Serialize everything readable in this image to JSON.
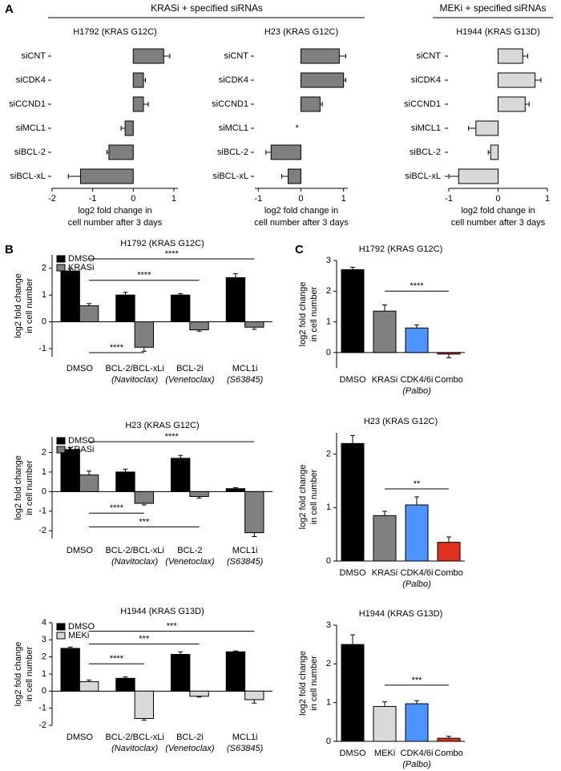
{
  "figure": {
    "panels": [
      "A",
      "B",
      "C"
    ],
    "groups": [
      "KRASi + specified siRNAs",
      "MEKi + specified siRNAs"
    ]
  },
  "chart_data": [
    {
      "type": "barh",
      "title": "H1792 (KRAS G12C)",
      "categories": [
        "siCNT",
        "siCDK4",
        "siCCND1",
        "siMCL1",
        "siBCL-2",
        "siBCL-xL"
      ],
      "values": [
        0.75,
        0.25,
        0.25,
        -0.2,
        -0.6,
        -1.3
      ],
      "errors": [
        0.15,
        0.05,
        0.12,
        0.1,
        0.05,
        0.3
      ],
      "color": "#7f7f7f",
      "xlim": [
        -2,
        1.1
      ],
      "xticks": [
        -2,
        -1,
        0,
        1
      ],
      "xlabel": [
        "log2 fold change in",
        "cell number after 3 days"
      ]
    },
    {
      "type": "barh",
      "title": "H23 (KRAS G12C)",
      "categories": [
        "siCNT",
        "siCDK4",
        "siCCND1",
        "siMCL1",
        "siBCL-2",
        "siBCL-xL"
      ],
      "values": [
        0.9,
        1.0,
        0.45,
        null,
        -0.7,
        -0.3
      ],
      "errors": [
        0.15,
        0.05,
        0.05,
        null,
        0.12,
        0.15
      ],
      "color": "#7f7f7f",
      "xlim": [
        -1.08,
        1.1
      ],
      "xticks": [
        -1,
        0,
        1
      ],
      "xlabel": [
        "log2 fold change in",
        "cell number after 3 days"
      ],
      "annotations": [
        "*"
      ]
    },
    {
      "type": "barh",
      "title": "H1944 (KRAS G13D)",
      "categories": [
        "siCNT",
        "siCDK4",
        "siCCND1",
        "siMCL1",
        "siBCL-2",
        "siBCL-xL"
      ],
      "values": [
        0.5,
        0.75,
        0.55,
        -0.45,
        -0.15,
        -0.8
      ],
      "errors": [
        0.1,
        0.12,
        0.08,
        0.15,
        0.05,
        0.2
      ],
      "color": "#d9d9d9",
      "xlim": [
        -1,
        1
      ],
      "xticks": [
        -1,
        0,
        1
      ],
      "xlabel": [
        "log2 fold change in",
        "cell number after 3 days"
      ]
    },
    {
      "type": "grouped",
      "title": "H1792 (KRAS G12C)",
      "categories": [
        "DMSO",
        "BCL-2/BCL-xLi",
        "BCL-2i",
        "MCL1i"
      ],
      "category_notes": [
        null,
        "(Navitoclax)",
        "(Venetoclax)",
        "(S63845)"
      ],
      "series": [
        {
          "name": "DMSO",
          "color": "#000000",
          "values": [
            1.9,
            1.0,
            1.0,
            1.65
          ],
          "errors": [
            0.08,
            0.1,
            0.05,
            0.15
          ]
        },
        {
          "name": "KRASi",
          "color": "#808080",
          "values": [
            0.6,
            -0.95,
            -0.3,
            -0.2
          ],
          "errors": [
            0.08,
            0.15,
            0.05,
            0.08
          ]
        }
      ],
      "ylim": [
        -1.3,
        2.5
      ],
      "yticks": [
        -1,
        0,
        1,
        2
      ],
      "ylabel": [
        "log2 fold change",
        "in cell number"
      ],
      "annotations": [
        "****",
        "****",
        "****"
      ]
    },
    {
      "type": "grouped",
      "title": "H23 (KRAS G12C)",
      "categories": [
        "DMSO",
        "BCL-2/BCL-xLi",
        "BCL-2",
        "MCL1i"
      ],
      "category_notes": [
        null,
        "(Navitoclax)",
        "(Venetoclax)",
        "(S63845)"
      ],
      "series": [
        {
          "name": "DMSO",
          "color": "#000000",
          "values": [
            2.15,
            1.0,
            1.7,
            0.15
          ],
          "errors": [
            0.1,
            0.15,
            0.15,
            0.05
          ]
        },
        {
          "name": "KRASi",
          "color": "#808080",
          "values": [
            0.85,
            -0.6,
            -0.25,
            -2.1
          ],
          "errors": [
            0.2,
            0.08,
            0.08,
            0.2
          ]
        }
      ],
      "ylim": [
        -2.4,
        2.8
      ],
      "yticks": [
        -2,
        -1,
        0,
        1,
        2
      ],
      "ylabel": [
        "log2 fold change",
        "in cell number"
      ],
      "annotations": [
        "****",
        "****",
        "***"
      ]
    },
    {
      "type": "grouped",
      "title": "H1944 (KRAS G13D)",
      "categories": [
        "DMSO",
        "BCL-2/BCL-xLi",
        "BCL-2i",
        "MCL1i"
      ],
      "category_notes": [
        null,
        "(Navitoclax)",
        "(Venetoclax)",
        "(S63845)"
      ],
      "series": [
        {
          "name": "DMSO",
          "color": "#000000",
          "values": [
            2.5,
            0.75,
            2.15,
            2.3
          ],
          "errors": [
            0.08,
            0.08,
            0.15,
            0.05
          ]
        },
        {
          "name": "MEKi",
          "color": "#d9d9d9",
          "values": [
            0.55,
            -1.6,
            -0.3,
            -0.5
          ],
          "errors": [
            0.1,
            0.1,
            0.05,
            0.2
          ]
        }
      ],
      "ylim": [
        -2,
        4
      ],
      "yticks": [
        -2,
        -1,
        0,
        1,
        2,
        3,
        4
      ],
      "ylabel": [
        "log2 fold change",
        "in cell number"
      ],
      "annotations": [
        "****",
        "***",
        "***"
      ]
    },
    {
      "type": "bar",
      "title": "H1792 (KRAS G12C)",
      "categories": [
        "DMSO",
        "KRASi",
        "CDK4/6i",
        "Combo"
      ],
      "category_notes": [
        null,
        null,
        "(Palbo)",
        null
      ],
      "values": [
        2.7,
        1.35,
        0.8,
        -0.05
      ],
      "errors": [
        0.08,
        0.2,
        0.1,
        0.12
      ],
      "colors": [
        "#000000",
        "#808080",
        "#4d94ff",
        "#e0301e"
      ],
      "ylim": [
        -0.5,
        3
      ],
      "yticks": [
        0,
        1,
        2,
        3
      ],
      "ylabel": [
        "log2 fold change",
        "in cell number"
      ],
      "annotations": [
        "****"
      ]
    },
    {
      "type": "bar",
      "title": "H23 (KRAS G12C)",
      "categories": [
        "DMSO",
        "KRASi",
        "CDK4/6i",
        "Combo"
      ],
      "category_notes": [
        null,
        null,
        "(Palbo)",
        null
      ],
      "values": [
        2.2,
        0.85,
        1.05,
        0.35
      ],
      "errors": [
        0.15,
        0.08,
        0.15,
        0.1
      ],
      "colors": [
        "#000000",
        "#808080",
        "#4d94ff",
        "#e0301e"
      ],
      "ylim": [
        0,
        2.4
      ],
      "yticks": [
        0,
        1,
        2
      ],
      "ylabel": [
        "log2 fold change",
        "in cell number"
      ],
      "annotations": [
        "**"
      ]
    },
    {
      "type": "bar",
      "title": "H1944 (KRAS G13D)",
      "categories": [
        "DMSO",
        "MEKi",
        "CDK4/6i",
        "Combo"
      ],
      "category_notes": [
        null,
        null,
        "(Palbo)",
        null
      ],
      "values": [
        2.5,
        0.9,
        0.97,
        0.08
      ],
      "errors": [
        0.25,
        0.12,
        0.08,
        0.05
      ],
      "colors": [
        "#000000",
        "#d9d9d9",
        "#4d94ff",
        "#e0301e"
      ],
      "ylim": [
        0,
        3
      ],
      "yticks": [
        0,
        1,
        2,
        3
      ],
      "ylabel": [
        "log2 fold change",
        "in cell number"
      ],
      "annotations": [
        "***"
      ]
    }
  ]
}
